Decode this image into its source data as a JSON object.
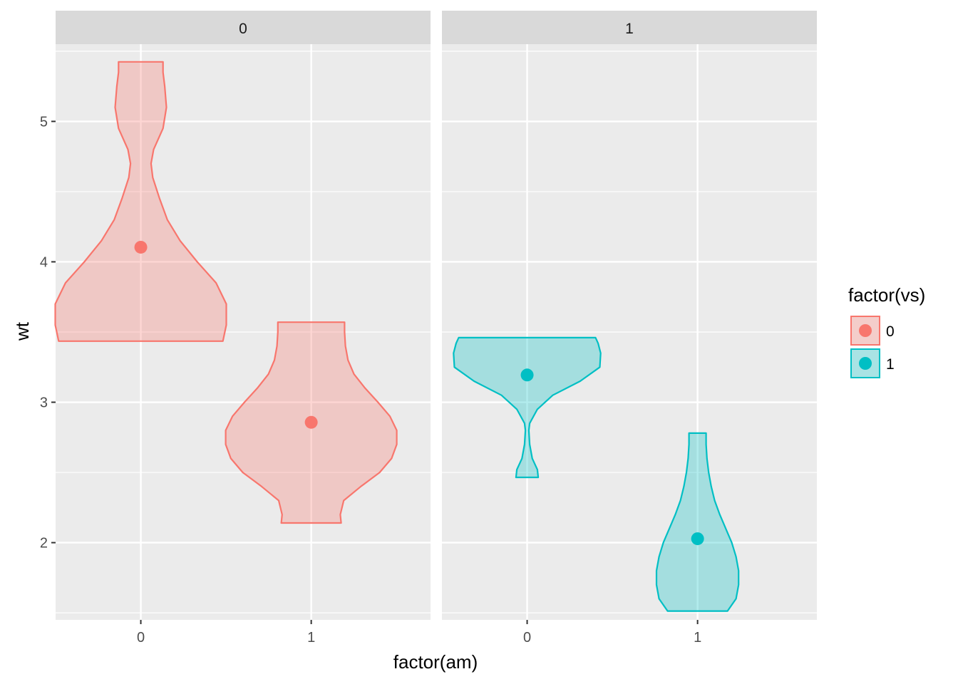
{
  "chart_data": {
    "type": "violin",
    "xlabel": "factor(am)",
    "ylabel": "wt",
    "ylim": [
      1.45,
      5.55
    ],
    "y_ticks": [
      2,
      3,
      4,
      5
    ],
    "y_tick_labels": [
      "2",
      "3",
      "4",
      "5"
    ],
    "grid": true,
    "facet_variable": "vs",
    "legend": {
      "title": "factor(vs)",
      "position": "right",
      "items": [
        {
          "label": "0",
          "color": "#F8766D"
        },
        {
          "label": "1",
          "color": "#00BFC4"
        }
      ]
    },
    "panels": [
      {
        "strip": "0",
        "categories": [
          "0",
          "1"
        ],
        "violins": [
          {
            "x": "0",
            "group": "0",
            "ymin": 3.435,
            "ymax": 5.424,
            "mean": 4.104,
            "profile": [
              [
                3.435,
                0.96
              ],
              [
                3.55,
                1.0
              ],
              [
                3.7,
                1.0
              ],
              [
                3.85,
                0.88
              ],
              [
                4.0,
                0.66
              ],
              [
                4.15,
                0.46
              ],
              [
                4.3,
                0.31
              ],
              [
                4.45,
                0.22
              ],
              [
                4.6,
                0.14
              ],
              [
                4.7,
                0.12
              ],
              [
                4.8,
                0.15
              ],
              [
                4.95,
                0.26
              ],
              [
                5.1,
                0.3
              ],
              [
                5.25,
                0.28
              ],
              [
                5.35,
                0.26
              ],
              [
                5.424,
                0.26
              ]
            ]
          },
          {
            "x": "1",
            "group": "0",
            "ymin": 2.14,
            "ymax": 3.57,
            "mean": 2.857,
            "profile": [
              [
                2.14,
                0.35
              ],
              [
                2.2,
                0.34
              ],
              [
                2.3,
                0.38
              ],
              [
                2.4,
                0.58
              ],
              [
                2.5,
                0.8
              ],
              [
                2.6,
                0.94
              ],
              [
                2.7,
                1.0
              ],
              [
                2.8,
                1.0
              ],
              [
                2.9,
                0.92
              ],
              [
                3.0,
                0.78
              ],
              [
                3.1,
                0.63
              ],
              [
                3.2,
                0.5
              ],
              [
                3.3,
                0.43
              ],
              [
                3.4,
                0.4
              ],
              [
                3.5,
                0.39
              ],
              [
                3.57,
                0.39
              ]
            ]
          }
        ],
        "points": [
          {
            "x": "0",
            "group": "0",
            "y": 4.104
          },
          {
            "x": "1",
            "group": "0",
            "y": 2.857
          }
        ]
      },
      {
        "strip": "1",
        "categories": [
          "0",
          "1"
        ],
        "violins": [
          {
            "x": "0",
            "group": "1",
            "ymin": 2.465,
            "ymax": 3.46,
            "mean": 3.194,
            "profile": [
              [
                2.465,
                0.13
              ],
              [
                2.52,
                0.12
              ],
              [
                2.6,
                0.06
              ],
              [
                2.7,
                0.03
              ],
              [
                2.8,
                0.02
              ],
              [
                2.85,
                0.03
              ],
              [
                2.95,
                0.12
              ],
              [
                3.05,
                0.3
              ],
              [
                3.15,
                0.62
              ],
              [
                3.25,
                0.85
              ],
              [
                3.35,
                0.86
              ],
              [
                3.42,
                0.83
              ],
              [
                3.46,
                0.8
              ]
            ]
          },
          {
            "x": "1",
            "group": "1",
            "ymin": 1.513,
            "ymax": 2.78,
            "mean": 2.028,
            "profile": [
              [
                1.513,
                0.35
              ],
              [
                1.6,
                0.45
              ],
              [
                1.7,
                0.48
              ],
              [
                1.8,
                0.48
              ],
              [
                1.9,
                0.45
              ],
              [
                2.0,
                0.4
              ],
              [
                2.1,
                0.33
              ],
              [
                2.2,
                0.26
              ],
              [
                2.3,
                0.2
              ],
              [
                2.4,
                0.16
              ],
              [
                2.5,
                0.13
              ],
              [
                2.6,
                0.11
              ],
              [
                2.7,
                0.1
              ],
              [
                2.78,
                0.1
              ]
            ]
          }
        ],
        "points": [
          {
            "x": "0",
            "group": "1",
            "y": 3.194
          },
          {
            "x": "1",
            "group": "1",
            "y": 2.028
          }
        ]
      }
    ]
  }
}
